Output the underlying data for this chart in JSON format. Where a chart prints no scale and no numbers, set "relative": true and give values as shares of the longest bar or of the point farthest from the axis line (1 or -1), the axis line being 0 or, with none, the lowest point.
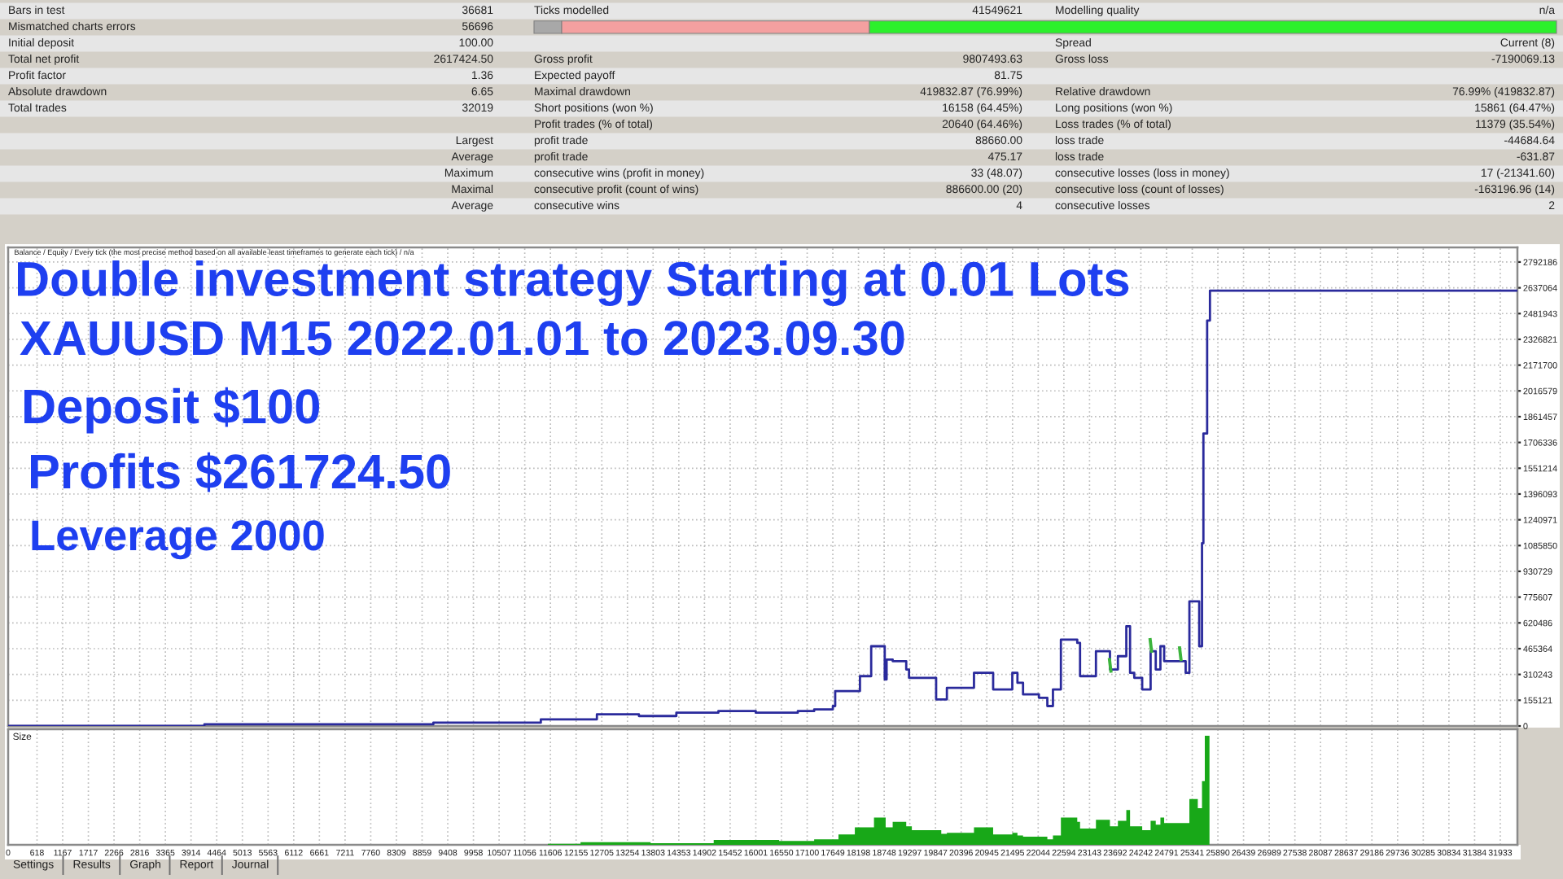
{
  "chart_data": [
    {
      "type": "other",
      "annotations": [
        "Bars in test",
        "36681",
        "Ticks modelled",
        "41549621",
        "Modelling quality",
        "n/a",
        "Mismatched charts errors",
        "56696",
        "Initial deposit",
        "100.00",
        "Spread",
        "Current (8)",
        "Total net profit",
        "2617424.50",
        "Gross profit",
        "9807493.63",
        "Gross loss",
        "-7190069.13",
        "Profit factor",
        "1.36",
        "Expected payoff",
        "81.75",
        "Absolute drawdown",
        "6.65",
        "Maximal drawdown",
        "419832.87 (76.99%)",
        "Relative drawdown",
        "76.99% (419832.87)",
        "Total trades",
        "32019",
        "Short positions (won %)",
        "16158 (64.45%)",
        "Long positions (won %)",
        "15861 (64.47%)",
        "Profit trades (% of total)",
        "20640 (64.46%)",
        "Loss trades (% of total)",
        "11379 (35.54%)",
        "Largest",
        "profit trade",
        "88660.00",
        "loss trade",
        "-44684.64",
        "Average",
        "profit trade",
        "475.17",
        "loss trade",
        "-631.87",
        "Maximum",
        "consecutive wins (profit in money)",
        "33 (48.07)",
        "consecutive losses (loss in money)",
        "17 (-21341.60)",
        "Maximal",
        "consecutive profit (count of wins)",
        "886600.00 (20)",
        "consecutive loss (count of losses)",
        "-163196.96 (14)",
        "Average",
        "consecutive wins",
        "4",
        "consecutive losses",
        "2"
      ]
    },
    {
      "type": "step",
      "subtitle": "Balance / Equity / Every tick (the most precise method based on all available least timeframes to generate each tick) / n/a",
      "grid": true,
      "tick_labels": "y",
      "annotations": [
        "Double investment strategy Starting at 0.01 Lots",
        "XAUUSD M15 2022.01.01 to 2023.09.30",
        "Deposit $100",
        "Profits $261724.50",
        "Leverage 2000"
      ],
      "xlim": [
        0,
        32300
      ],
      "xticks": [
        0,
        618,
        1167,
        1717,
        2266,
        2816,
        3365,
        3914,
        4464,
        5013,
        5563,
        6112,
        6661,
        7211,
        7760,
        8309,
        8859,
        9408,
        9958,
        10507,
        11056,
        11606,
        12155,
        12705,
        13254,
        13803,
        14353,
        14902,
        15452,
        16001,
        16550,
        17100,
        17649,
        18198,
        18748,
        19297,
        19847,
        20396,
        20945,
        21495,
        22044,
        22594,
        23143,
        23692,
        24242,
        24791,
        25341,
        25890,
        26439,
        26989,
        27538,
        28087,
        28637,
        29186,
        29736,
        30285,
        30834,
        31384,
        31933
      ],
      "ylim": [
        0,
        2880000
      ],
      "yticks": [
        0,
        155121,
        310243,
        465364,
        620486,
        775607,
        930729,
        1085850,
        1240971,
        1396093,
        1551214,
        1706336,
        1861457,
        2016579,
        2171700,
        2326821,
        2481943,
        2637064,
        2792186
      ],
      "series": [
        {
          "color": "#2a2a9c",
          "x": [
            0,
            4200,
            9100,
            11400,
            12600,
            13500,
            14300,
            15200,
            16000,
            16900,
            17250,
            17650,
            17700,
            18230,
            18470,
            18760,
            18800,
            18930,
            19220,
            19280,
            19860,
            20090,
            20670,
            21080,
            21490,
            21600,
            21720,
            22060,
            22240,
            22360,
            22530,
            22880,
            22940,
            23280,
            23580,
            23750,
            23930,
            24010,
            24100,
            24270,
            24450,
            24560,
            24660,
            24740,
            25200,
            25280,
            25490,
            25550,
            25580,
            25660,
            25720,
            32300
          ],
          "values": [
            0,
            10000,
            20000,
            40000,
            70000,
            60000,
            80000,
            90000,
            80000,
            90000,
            100000,
            120000,
            210000,
            300000,
            480000,
            280000,
            400000,
            390000,
            340000,
            290000,
            160000,
            230000,
            320000,
            220000,
            320000,
            260000,
            190000,
            170000,
            120000,
            220000,
            520000,
            500000,
            300000,
            450000,
            340000,
            420000,
            600000,
            320000,
            290000,
            220000,
            450000,
            340000,
            480000,
            390000,
            320000,
            750000,
            480000,
            1100000,
            1760000,
            2440000,
            2620000,
            2620000
          ]
        },
        {
          "type": "line",
          "color": "#3cb43c",
          "x": [
            23570,
            23600,
            23620,
            24440,
            24470,
            24490,
            25070,
            25100
          ],
          "values": [
            400000,
            330000,
            null,
            520000,
            450000,
            null,
            470000,
            400000
          ]
        }
      ]
    },
    {
      "type": "area",
      "title": "Size",
      "relative": true,
      "grid": "x",
      "tick_labels": "x",
      "xlim": [
        0,
        32300
      ],
      "xticks": [
        0,
        618,
        1167,
        1717,
        2266,
        2816,
        3365,
        3914,
        4464,
        5013,
        5563,
        6112,
        6661,
        7211,
        7760,
        8309,
        8859,
        9408,
        9958,
        10507,
        11056,
        11606,
        12155,
        12705,
        13254,
        13803,
        14353,
        14902,
        15452,
        16001,
        16550,
        17100,
        17649,
        18198,
        18748,
        19297,
        19847,
        20396,
        20945,
        21495,
        22044,
        22594,
        23143,
        23692,
        24242,
        24791,
        25341,
        25890,
        26439,
        26989,
        27538,
        28087,
        28637,
        29186,
        29736,
        30285,
        30834,
        31384,
        31933
      ],
      "series": [
        {
          "color": "#18a818",
          "x": [
            11550,
            12250,
            13750,
            15100,
            16500,
            17250,
            17770,
            18120,
            18530,
            18780,
            18930,
            19220,
            19340,
            19970,
            20090,
            20670,
            21080,
            21490,
            21600,
            21720,
            22240,
            22360,
            22530,
            22880,
            22940,
            23280,
            23580,
            23750,
            23930,
            24010,
            24270,
            24450,
            24560,
            24660,
            24740,
            25280,
            25460,
            25550,
            25610,
            25710
          ],
          "values": [
            0.01,
            0.025,
            0.015,
            0.045,
            0.035,
            0.05,
            0.095,
            0.16,
            0.25,
            0.16,
            0.21,
            0.17,
            0.135,
            0.1,
            0.11,
            0.16,
            0.095,
            0.11,
            0.085,
            0.075,
            0.05,
            0.085,
            0.25,
            0.21,
            0.15,
            0.23,
            0.17,
            0.22,
            0.32,
            0.17,
            0.135,
            0.22,
            0.185,
            0.25,
            0.2,
            0.42,
            0.335,
            0.585,
            1.0,
            0
          ]
        }
      ]
    },
    {
      "type": "other",
      "annotations": [
        "Settings",
        "Results",
        "Graph",
        "Report",
        "Journal"
      ]
    }
  ]
}
